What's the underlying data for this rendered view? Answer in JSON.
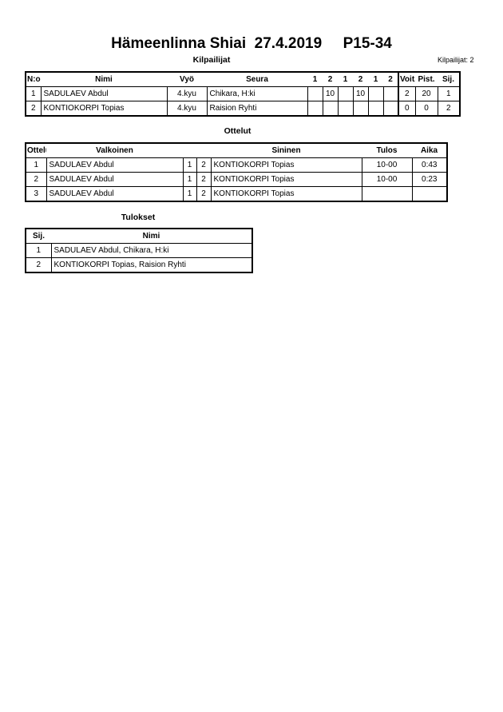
{
  "title": "Hämeenlinna Shiai  27.4.2019     P15-34",
  "competitors": {
    "heading": "Kilpailijat",
    "count_label": "Kilpailijat: 2",
    "headers": [
      "N:o",
      "Nimi",
      "Vyö",
      "Seura",
      "1",
      "2",
      "1",
      "2",
      "1",
      "2",
      "Voit.",
      "Pist.",
      "Sij."
    ],
    "rows": [
      [
        "1",
        "SADULAEV Abdul",
        "4.kyu",
        "Chikara, H:ki",
        "",
        "10",
        "",
        "10",
        "",
        "",
        "2",
        "20",
        "1"
      ],
      [
        "2",
        "KONTIOKORPI Topias",
        "4.kyu",
        "Raision Ryhti",
        "",
        "",
        "",
        "",
        "",
        "",
        "0",
        "0",
        "2"
      ]
    ]
  },
  "matches": {
    "heading": "Ottelut",
    "headers": [
      "Ottelu",
      "Valkoinen",
      "",
      "",
      "Sininen",
      "Tulos",
      "Aika"
    ],
    "rows": [
      [
        "1",
        "SADULAEV Abdul",
        "1",
        "2",
        "KONTIOKORPI Topias",
        "10-00",
        "0:43"
      ],
      [
        "2",
        "SADULAEV Abdul",
        "1",
        "2",
        "KONTIOKORPI Topias",
        "10-00",
        "0:23"
      ],
      [
        "3",
        "SADULAEV Abdul",
        "1",
        "2",
        "KONTIOKORPI Topias",
        "",
        ""
      ]
    ]
  },
  "results": {
    "heading": "Tulokset",
    "headers": [
      "Sij.",
      "Nimi"
    ],
    "rows": [
      [
        "1",
        "SADULAEV Abdul, Chikara, H:ki"
      ],
      [
        "2",
        "KONTIOKORPI Topias, Raision Ryhti"
      ]
    ]
  }
}
